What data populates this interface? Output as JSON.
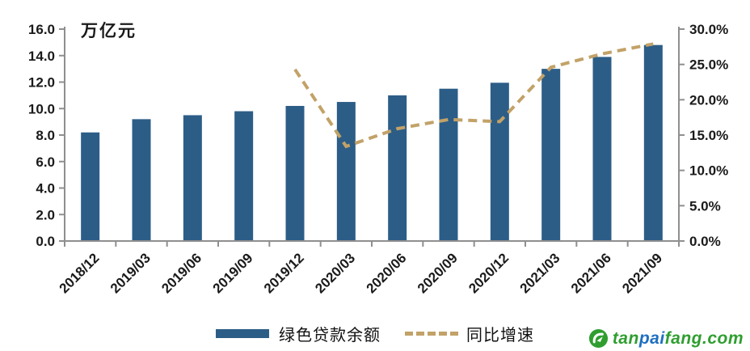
{
  "figure": {
    "background": "#ffffff"
  },
  "legend": {
    "bar_label": "绿色贷款余额",
    "line_label": "同比增速"
  },
  "watermark": {
    "part1": "tan",
    "part2": "pai",
    "part3": "fang.com",
    "green": "#2f9e2f",
    "blue": "#1e6fc0"
  },
  "chart_data": {
    "type": "bar",
    "combo": "bar+line",
    "title": "",
    "categories": [
      "2018/12",
      "2019/03",
      "2019/06",
      "2019/09",
      "2019/12",
      "2020/03",
      "2020/06",
      "2020/09",
      "2020/12",
      "2021/03",
      "2021/06",
      "2021/09"
    ],
    "series": [
      {
        "name": "绿色贷款余额",
        "type": "bar",
        "axis": "left",
        "unit": "万亿元",
        "values": [
          8.2,
          9.2,
          9.5,
          9.8,
          10.2,
          10.5,
          11.0,
          11.5,
          11.95,
          13.0,
          13.9,
          14.8
        ]
      },
      {
        "name": "同比增速",
        "type": "line",
        "line_style": "dashed",
        "axis": "right",
        "unit": "%",
        "values": [
          null,
          null,
          null,
          null,
          24.3,
          13.4,
          15.9,
          17.2,
          16.9,
          24.6,
          26.5,
          27.9
        ]
      }
    ],
    "left_axis": {
      "title": "万亿元",
      "min": 0,
      "max": 16,
      "step": 2,
      "tick_labels": [
        "0.0",
        "2.0",
        "4.0",
        "6.0",
        "8.0",
        "10.0",
        "12.0",
        "14.0",
        "16.0"
      ]
    },
    "right_axis": {
      "min": 0,
      "max": 30,
      "step": 5,
      "tick_labels": [
        "0.0%",
        "5.0%",
        "10.0%",
        "15.0%",
        "20.0%",
        "25.0%",
        "30.0%"
      ]
    },
    "legend_position": "bottom",
    "grid": false,
    "colors": {
      "bar": "#2c5d87",
      "line": "#c2a268",
      "axis": "#8f8f8f",
      "text": "#1a1a1a"
    }
  }
}
